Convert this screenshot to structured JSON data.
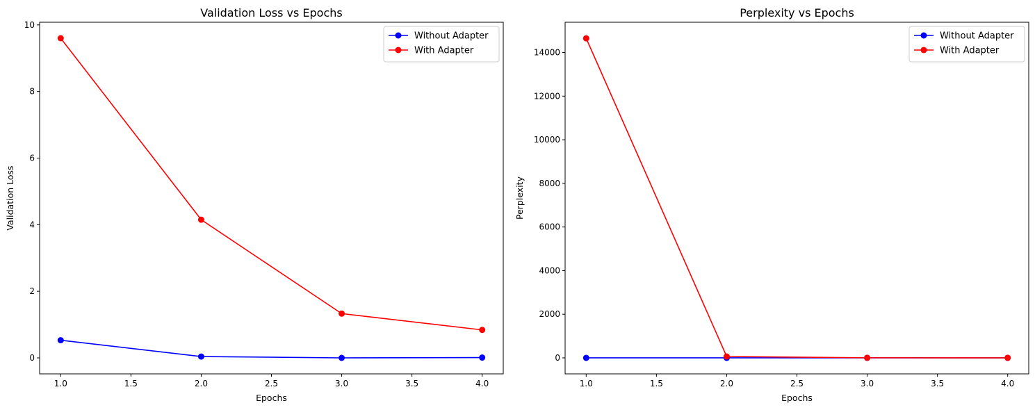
{
  "chart_data": [
    {
      "type": "line",
      "title": "Validation Loss vs Epochs",
      "xlabel": "Epochs",
      "ylabel": "Validation Loss",
      "x": [
        1.0,
        2.0,
        3.0,
        4.0
      ],
      "xlim": [
        0.85,
        4.15
      ],
      "ylim": [
        -0.48,
        10.08
      ],
      "xticks": [
        1.0,
        1.5,
        2.0,
        2.5,
        3.0,
        3.5,
        4.0
      ],
      "xtick_labels": [
        "1.0",
        "1.5",
        "2.0",
        "2.5",
        "3.0",
        "3.5",
        "4.0"
      ],
      "yticks": [
        0,
        2,
        4,
        6,
        8,
        10
      ],
      "ytick_labels": [
        "0",
        "2",
        "4",
        "6",
        "8",
        "10"
      ],
      "grid": false,
      "legend_position": "top-right",
      "series": [
        {
          "name": "Without Adapter",
          "color": "#0000ff",
          "marker": "circle",
          "values": [
            0.53,
            0.04,
            0.0,
            0.01
          ]
        },
        {
          "name": "With Adapter",
          "color": "#ff0000",
          "marker": "circle",
          "values": [
            9.6,
            4.15,
            1.33,
            0.84
          ]
        }
      ]
    },
    {
      "type": "line",
      "title": "Perplexity vs Epochs",
      "xlabel": "Epochs",
      "ylabel": "Perplexity",
      "x": [
        1.0,
        2.0,
        3.0,
        4.0
      ],
      "xlim": [
        0.85,
        4.15
      ],
      "ylim": [
        -733,
        15387
      ],
      "xticks": [
        1.0,
        1.5,
        2.0,
        2.5,
        3.0,
        3.5,
        4.0
      ],
      "xtick_labels": [
        "1.0",
        "1.5",
        "2.0",
        "2.5",
        "3.0",
        "3.5",
        "4.0"
      ],
      "yticks": [
        0,
        2000,
        4000,
        6000,
        8000,
        10000,
        12000,
        14000
      ],
      "ytick_labels": [
        "0",
        "2000",
        "4000",
        "6000",
        "8000",
        "10000",
        "12000",
        "14000"
      ],
      "grid": false,
      "legend_position": "top-right",
      "series": [
        {
          "name": "Without Adapter",
          "color": "#0000ff",
          "marker": "circle",
          "values": [
            1.7,
            1.04,
            1.0,
            1.01
          ]
        },
        {
          "name": "With Adapter",
          "color": "#ff0000",
          "marker": "circle",
          "values": [
            14650,
            63,
            3.8,
            2.3
          ]
        }
      ]
    }
  ]
}
